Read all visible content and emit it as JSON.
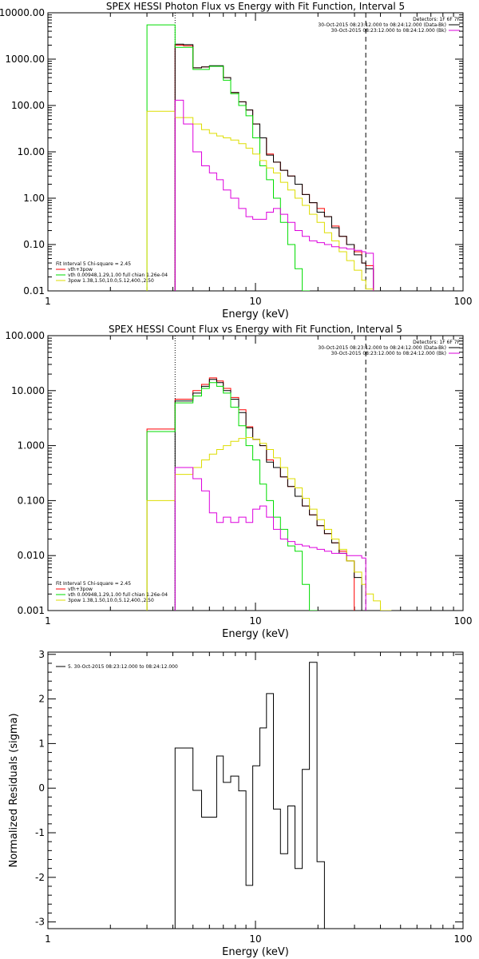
{
  "chart_data": [
    {
      "type": "line",
      "title": "SPEX HESSI Photon Flux vs Energy with Fit Function, Interval 5",
      "xlabel": "Energy (keV)",
      "ylabel": "",
      "xscale": "log",
      "yscale": "log",
      "xlim": [
        1,
        100
      ],
      "ylim": [
        0.01,
        10000
      ],
      "y_ticks": [
        {
          "v": 0.01,
          "label": "0.01"
        },
        {
          "v": 0.1,
          "label": "0.10"
        },
        {
          "v": 1,
          "label": "1.00"
        },
        {
          "v": 10,
          "label": "10.00"
        },
        {
          "v": 100,
          "label": "100.00"
        },
        {
          "v": 1000,
          "label": "1000.00"
        },
        {
          "v": 10000,
          "label": "10000.00"
        }
      ],
      "x_ticks": [
        {
          "v": 1,
          "label": "1"
        },
        {
          "v": 10,
          "label": "10"
        },
        {
          "v": 100,
          "label": "100"
        }
      ],
      "vlines": [
        {
          "x": 4.1,
          "style": "dotted",
          "color": "#000000"
        },
        {
          "x": 34,
          "style": "dashed",
          "color": "#000000"
        }
      ],
      "edges": [
        3,
        4.1,
        4.5,
        5,
        5.5,
        6,
        6.5,
        7,
        7.6,
        8.3,
        9,
        9.7,
        10.5,
        11.3,
        12.2,
        13.2,
        14.3,
        15.5,
        16.8,
        18.2,
        19.8,
        21.5,
        23.3,
        25.3,
        27.5,
        29.9,
        32.5,
        34,
        37,
        40
      ],
      "series": [
        {
          "name": "vth+3pow",
          "color": "#ff0000",
          "edges_from": 1,
          "values": [
            2000,
            1950,
            650,
            680,
            700,
            700,
            400,
            190,
            120,
            80,
            40,
            20,
            9,
            6,
            4,
            3,
            2,
            1.2,
            0.8,
            0.6,
            0.4,
            0.25,
            0.15,
            0.1,
            0.07,
            0.04,
            0.035
          ]
        },
        {
          "name": "",
          "color": "#000000",
          "edges_from": 1,
          "values": [
            2100,
            2050,
            650,
            680,
            720,
            720,
            400,
            190,
            120,
            80,
            40,
            20,
            8.5,
            6,
            4,
            3,
            2,
            1.2,
            0.8,
            0.5,
            0.4,
            0.23,
            0.15,
            0.1,
            0.06,
            0.04,
            0.03
          ]
        },
        {
          "name": "vth 0.00948,1.29,1.00 full chian 1.26e-04",
          "color": "#00dd00",
          "edges_from": 0,
          "values": [
            5500,
            1800,
            1800,
            600,
            600,
            700,
            700,
            350,
            180,
            100,
            60,
            20,
            5,
            2.5,
            1,
            0.3,
            0.1,
            0.03,
            0.01
          ]
        },
        {
          "name": "3pow 1.38,1.50,10.0,5.12,400.,2.50",
          "color": "#dddd00",
          "edges_from": 0,
          "values": [
            75,
            55,
            55,
            40,
            30,
            25,
            22,
            20,
            18,
            15,
            12,
            9,
            6.5,
            4.5,
            3.5,
            2.2,
            1.5,
            1,
            0.7,
            0.45,
            0.3,
            0.18,
            0.12,
            0.07,
            0.045,
            0.028,
            0.017,
            0.011,
            0.007
          ]
        },
        {
          "name": "",
          "color": "#dd00dd",
          "edges_from": 1,
          "values": [
            130,
            40,
            10,
            5,
            3.5,
            2.5,
            1.5,
            1,
            0.6,
            0.4,
            0.35,
            0.35,
            0.5,
            0.6,
            0.45,
            0.3,
            0.2,
            0.15,
            0.12,
            0.11,
            0.1,
            0.09,
            0.085,
            0.08,
            0.075,
            0.07,
            0.065
          ]
        }
      ],
      "legend": {
        "placement": "top-right",
        "heading": "Detectors: 1F 6F 7F",
        "entries": [
          {
            "text": "30-Oct-2015 08:23:12.000 to 08:24:12.000 (Data-Bk)",
            "color": "#000000"
          },
          {
            "text": "30-Oct-2015 08:23:12.000 to 08:24:12.000 (Bk)",
            "color": "#dd00dd"
          }
        ]
      },
      "fit_legend": {
        "placement": "bottom-left",
        "heading": "Fit Interval 5   Chi-square = 2.45",
        "entries": [
          {
            "text": "vth+3pow",
            "color": "#ff0000"
          },
          {
            "text": "vth 0.00948,1.29,1.00 full chian 1.26e-04",
            "color": "#00dd00"
          },
          {
            "text": "3pow 1.38,1.50,10.0,5.12,400.,2.50",
            "color": "#dddd00"
          }
        ]
      }
    },
    {
      "type": "line",
      "title": "SPEX HESSI Count Flux vs Energy with Fit Function, Interval 5",
      "xlabel": "Energy (keV)",
      "ylabel": "",
      "xscale": "log",
      "yscale": "log",
      "xlim": [
        1,
        100
      ],
      "ylim": [
        0.001,
        100
      ],
      "y_ticks": [
        {
          "v": 0.001,
          "label": "0.001"
        },
        {
          "v": 0.01,
          "label": "0.010"
        },
        {
          "v": 0.1,
          "label": "0.100"
        },
        {
          "v": 1,
          "label": "1.000"
        },
        {
          "v": 10,
          "label": "10.000"
        },
        {
          "v": 100,
          "label": "100.000"
        }
      ],
      "x_ticks": [
        {
          "v": 1,
          "label": "1"
        },
        {
          "v": 10,
          "label": "10"
        },
        {
          "v": 100,
          "label": "100"
        }
      ],
      "vlines": [
        {
          "x": 4.1,
          "style": "dotted",
          "color": "#000000"
        },
        {
          "x": 34,
          "style": "dashed",
          "color": "#000000"
        }
      ],
      "edges": [
        3,
        4.1,
        5,
        5.5,
        6,
        6.5,
        7,
        7.6,
        8.3,
        9,
        9.7,
        10.5,
        11.3,
        12.2,
        13.2,
        14.3,
        15.5,
        16.8,
        18.2,
        19.8,
        21.5,
        23.3,
        25.3,
        27.5,
        29.9,
        32.5,
        34,
        37,
        40,
        45
      ],
      "series": [
        {
          "name": "vth+3pow",
          "color": "#ff0000",
          "edges_from": 0,
          "values": [
            2.0,
            7.0,
            10,
            13,
            17,
            15,
            11,
            7.5,
            4.5,
            2.2,
            1.3,
            1.0,
            0.55,
            0.4,
            0.27,
            0.18,
            0.12,
            0.08,
            0.055,
            0.035,
            0.025,
            0.017,
            0.012,
            0.008
          ]
        },
        {
          "name": "",
          "color": "#000000",
          "edges_from": 1,
          "values": [
            6.5,
            9,
            12,
            16,
            14,
            10,
            7,
            4,
            2.1,
            1.3,
            1.0,
            0.5,
            0.4,
            0.27,
            0.18,
            0.12,
            0.08,
            0.055,
            0.035,
            0.025,
            0.017,
            0.011,
            0.008,
            0.004
          ]
        },
        {
          "name": "vth 0.00948,1.29,1.00 full chian 1.26e-04",
          "color": "#00dd00",
          "edges_from": 0,
          "values": [
            1.8,
            6,
            8,
            11,
            14,
            12,
            9,
            5,
            2.3,
            1.0,
            0.55,
            0.2,
            0.1,
            0.05,
            0.03,
            0.015,
            0.012,
            0.003,
            0.001
          ]
        },
        {
          "name": "3pow 1.38,1.50,10.0,5.12,400.,2.50",
          "color": "#dddd00",
          "edges_from": 0,
          "values": [
            0.1,
            0.3,
            0.4,
            0.55,
            0.7,
            0.85,
            1.0,
            1.2,
            1.35,
            1.4,
            1.3,
            1.1,
            0.85,
            0.6,
            0.4,
            0.25,
            0.17,
            0.11,
            0.07,
            0.045,
            0.03,
            0.02,
            0.013,
            0.008,
            0.005,
            0.003,
            0.002,
            0.0015,
            0.001
          ]
        },
        {
          "name": "",
          "color": "#dd00dd",
          "edges_from": 1,
          "values": [
            0.4,
            0.25,
            0.15,
            0.06,
            0.04,
            0.05,
            0.04,
            0.05,
            0.04,
            0.07,
            0.08,
            0.05,
            0.03,
            0.02,
            0.018,
            0.016,
            0.015,
            0.014,
            0.013,
            0.012,
            0.011,
            0.011,
            0.01,
            0.01,
            0.009
          ]
        }
      ],
      "legend": {
        "placement": "top-right",
        "heading": "Detectors: 1F 6F 7F",
        "entries": [
          {
            "text": "30-Oct-2015 08:23:12.000 to 08:24:12.000 (Data-Bk)",
            "color": "#000000"
          },
          {
            "text": "30-Oct-2015 08:23:12.000 to 08:24:12.000 (Bk)",
            "color": "#dd00dd"
          }
        ]
      },
      "fit_legend": {
        "placement": "bottom-left",
        "heading": "Fit Interval 5   Chi-square = 2.45",
        "entries": [
          {
            "text": "vth+3pow",
            "color": "#ff0000"
          },
          {
            "text": "vth 0.00948,1.29,1.00 full chian 1.26e-04",
            "color": "#00dd00"
          },
          {
            "text": "3pow 1.38,1.50,10.0,5.12,400.,2.50",
            "color": "#dddd00"
          }
        ]
      }
    },
    {
      "type": "line",
      "title": "",
      "xlabel": "Energy (keV)",
      "ylabel": "Normalized Residuals (sigma)",
      "xscale": "log",
      "yscale": "linear",
      "xlim": [
        1,
        100
      ],
      "ylim": [
        -3.15,
        3.05
      ],
      "y_ticks": [
        {
          "v": -3,
          "label": "-3"
        },
        {
          "v": -2,
          "label": "-2"
        },
        {
          "v": -1,
          "label": "-1"
        },
        {
          "v": 0,
          "label": "0"
        },
        {
          "v": 1,
          "label": "1"
        },
        {
          "v": 2,
          "label": "2"
        },
        {
          "v": 3,
          "label": "3"
        }
      ],
      "x_ticks": [
        {
          "v": 1,
          "label": "1"
        },
        {
          "v": 10,
          "label": "10"
        },
        {
          "v": 100,
          "label": "100"
        }
      ],
      "vlines": [],
      "edges": [
        4.1,
        5,
        5.5,
        6.5,
        7,
        7.6,
        8.3,
        9,
        9.7,
        10.5,
        11.3,
        12.2,
        13.2,
        14.3,
        15.5,
        16.8,
        18.2,
        19.8,
        21.5,
        23.3,
        25.3,
        27.5,
        29.9,
        32.5,
        34
      ],
      "series": [
        {
          "name": "5. 30-Oct-2015 08:23:12.000 to 08:24:12.000",
          "color": "#000000",
          "edges_from": 0,
          "start_from": -3.15,
          "end_to": -3.15,
          "values": [
            0.9,
            -0.05,
            -0.65,
            0.72,
            0.13,
            0.27,
            -0.06,
            -2.18,
            0.5,
            1.35,
            2.12,
            -0.47,
            -1.47,
            -0.4,
            -1.8,
            0.42,
            2.82,
            -1.65
          ]
        }
      ],
      "legend": {
        "placement": "top-left",
        "heading": "",
        "entries": [
          {
            "text": "5. 30-Oct-2015 08:23:12.000 to 08:24:12.000",
            "color": "#000000"
          }
        ]
      }
    }
  ]
}
